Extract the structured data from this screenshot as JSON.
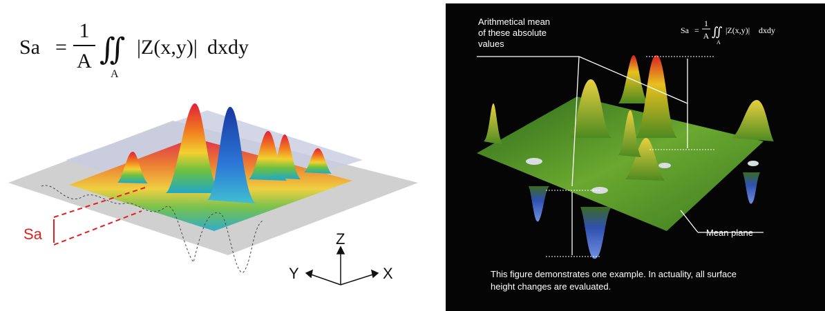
{
  "left": {
    "formula": {
      "lhs": "Sa",
      "equals": "=",
      "numerator": "1",
      "denominator": "A",
      "integral": "∬",
      "region": "A",
      "integrand": "|Z(x,y)|",
      "differential": "dxdy"
    },
    "sa_label": "Sa",
    "axes": {
      "z": "Z",
      "y": "Y",
      "x": "X"
    }
  },
  "right": {
    "annotation": [
      "Arithmetical mean",
      "of these absolute",
      "values"
    ],
    "formula": {
      "lhs": "Sa",
      "equals": "=",
      "numerator": "1",
      "denominator": "A",
      "integral": "∬",
      "region": "A",
      "integrand": "|Z(x,y)|",
      "differential": "dxdy"
    },
    "mean_plane": "Mean plane",
    "caption": [
      "This figure demonstrates one example. In actuality, all surface",
      "height changes are evaluated."
    ]
  }
}
